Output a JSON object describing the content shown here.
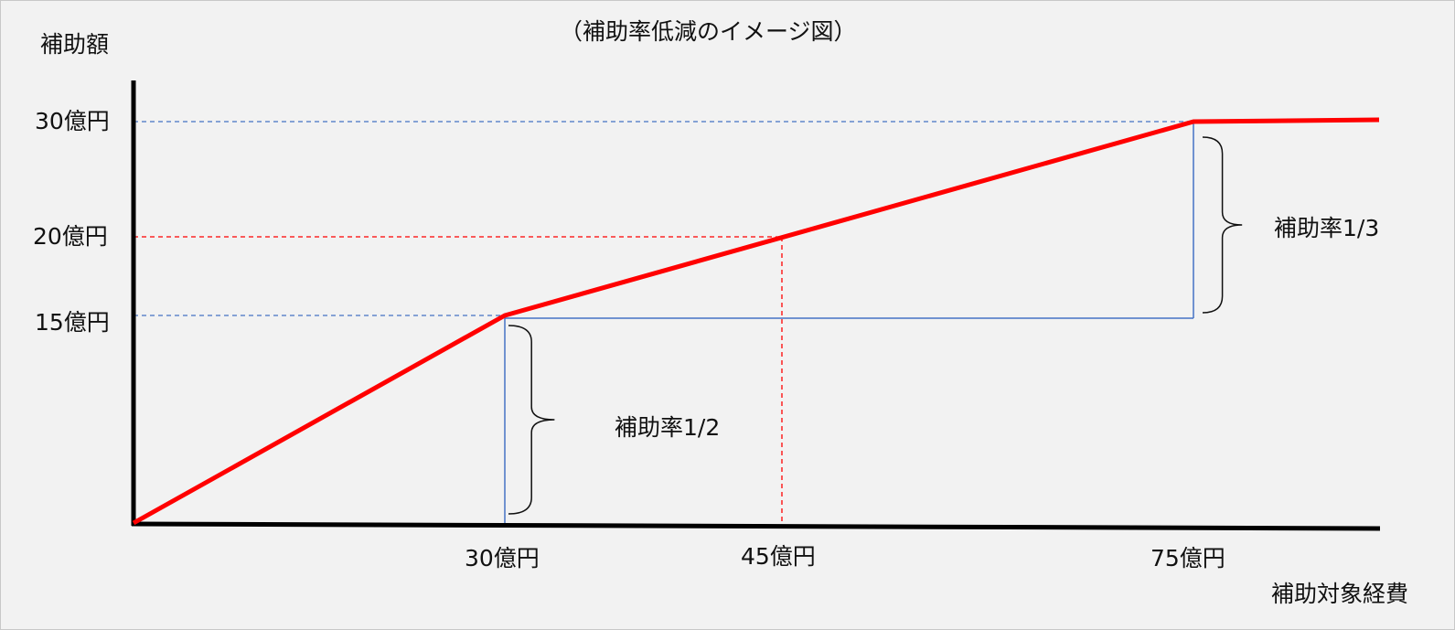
{
  "chart_data": {
    "type": "line",
    "title": "（補助率低減のイメージ図）",
    "xlabel": "補助対象経費",
    "ylabel": "補助額",
    "x_ticks": [
      {
        "value": 30,
        "label": "30億円"
      },
      {
        "value": 45,
        "label": "45億円"
      },
      {
        "value": 75,
        "label": "75億円"
      }
    ],
    "y_ticks": [
      {
        "value": 15,
        "label": "15億円"
      },
      {
        "value": 20,
        "label": "20億円"
      },
      {
        "value": 30,
        "label": "30億円"
      }
    ],
    "series": [
      {
        "points": [
          [
            0,
            0
          ],
          [
            30,
            15
          ],
          [
            75,
            30
          ]
        ],
        "continues_flat_after_x": 75,
        "color": "#ff0000"
      }
    ],
    "annotations": [
      {
        "text": "補助率1/2",
        "from_x": 0,
        "to_x": 30
      },
      {
        "text": "補助率1/3",
        "from_x": 30,
        "to_x": 75
      }
    ],
    "guide_colors": {
      "blue": "#4472c4",
      "red": "#ff0000"
    },
    "grid": false,
    "legend": "none"
  }
}
